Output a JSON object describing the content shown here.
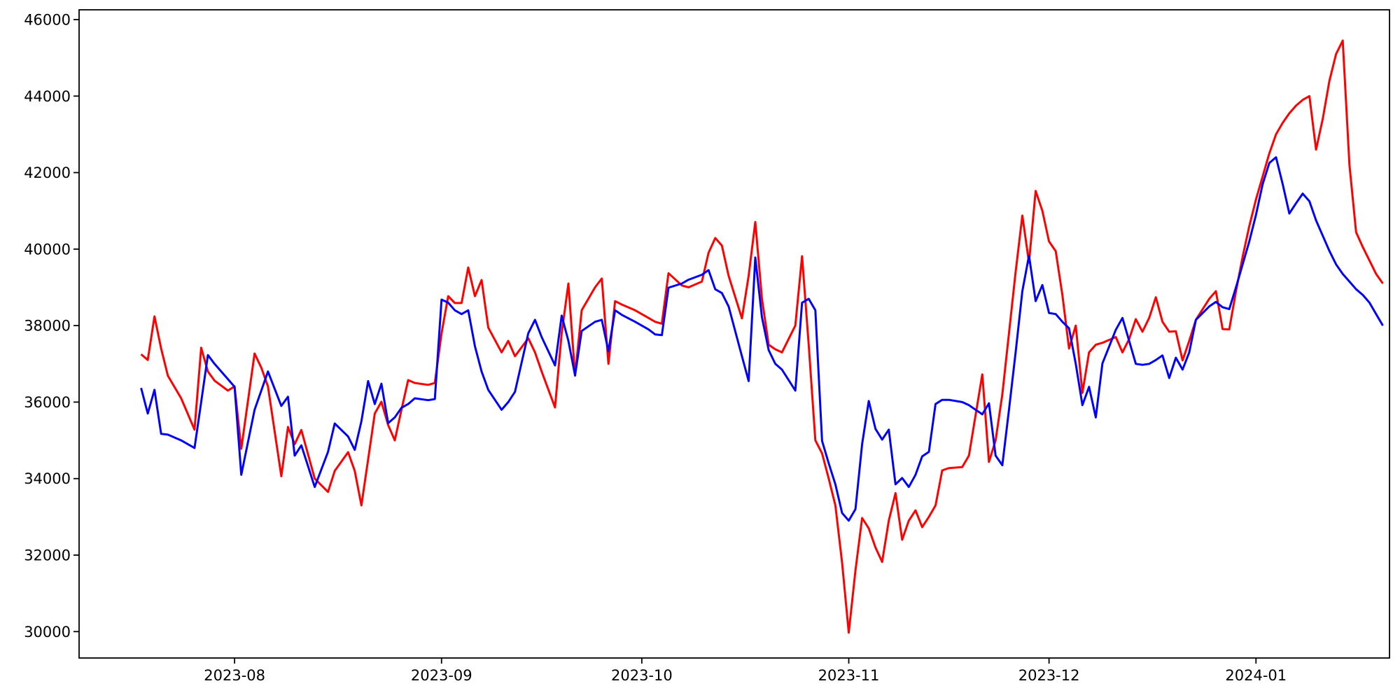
{
  "figure": {
    "title": "",
    "background_color": "#ffffff",
    "spine_color": "#000000"
  },
  "chart_data": {
    "type": "line",
    "title": "",
    "xlabel": "",
    "ylabel": "",
    "grid": false,
    "legend": null,
    "x_tick_labels": [
      "2023-08",
      "2023-09",
      "2023-10",
      "2023-11",
      "2023-12",
      "2024-01"
    ],
    "x_tick_dates": [
      "2023-08-01",
      "2023-09-01",
      "2023-10-01",
      "2023-11-01",
      "2023-12-01",
      "2024-01-01"
    ],
    "y_ticks": [
      30000,
      32000,
      34000,
      36000,
      38000,
      40000,
      42000,
      44000,
      46000
    ],
    "ylim": [
      29310,
      46256
    ],
    "xlim": [
      "2023-07-08T17:00:00",
      "2024-01-21T00:00:00"
    ],
    "dates": [
      "2023-07-18",
      "2023-07-19",
      "2023-07-20",
      "2023-07-21",
      "2023-07-22",
      "2023-07-24",
      "2023-07-26",
      "2023-07-27",
      "2023-07-28",
      "2023-07-29",
      "2023-07-31",
      "2023-08-01",
      "2023-08-02",
      "2023-08-04",
      "2023-08-05",
      "2023-08-06",
      "2023-08-08",
      "2023-08-09",
      "2023-08-10",
      "2023-08-11",
      "2023-08-13",
      "2023-08-15",
      "2023-08-16",
      "2023-08-18",
      "2023-08-19",
      "2023-08-20",
      "2023-08-21",
      "2023-08-22",
      "2023-08-23",
      "2023-08-24",
      "2023-08-25",
      "2023-08-26",
      "2023-08-27",
      "2023-08-28",
      "2023-08-30",
      "2023-08-31",
      "2023-09-01",
      "2023-09-02",
      "2023-09-03",
      "2023-09-04",
      "2023-09-05",
      "2023-09-06",
      "2023-09-07",
      "2023-09-08",
      "2023-09-10",
      "2023-09-11",
      "2023-09-12",
      "2023-09-14",
      "2023-09-15",
      "2023-09-16",
      "2023-09-18",
      "2023-09-19",
      "2023-09-20",
      "2023-09-21",
      "2023-09-22",
      "2023-09-24",
      "2023-09-25",
      "2023-09-26",
      "2023-09-27",
      "2023-09-28",
      "2023-09-30",
      "2023-10-02",
      "2023-10-03",
      "2023-10-04",
      "2023-10-05",
      "2023-10-07",
      "2023-10-08",
      "2023-10-10",
      "2023-10-11",
      "2023-10-12",
      "2023-10-13",
      "2023-10-14",
      "2023-10-16",
      "2023-10-17",
      "2023-10-18",
      "2023-10-19",
      "2023-10-20",
      "2023-10-21",
      "2023-10-22",
      "2023-10-24",
      "2023-10-25",
      "2023-10-26",
      "2023-10-27",
      "2023-10-28",
      "2023-10-29",
      "2023-10-30",
      "2023-10-31",
      "2023-11-01",
      "2023-11-02",
      "2023-11-03",
      "2023-11-04",
      "2023-11-05",
      "2023-11-06",
      "2023-11-07",
      "2023-11-08",
      "2023-11-09",
      "2023-11-10",
      "2023-11-11",
      "2023-11-12",
      "2023-11-13",
      "2023-11-14",
      "2023-11-15",
      "2023-11-16",
      "2023-11-18",
      "2023-11-19",
      "2023-11-21",
      "2023-11-22",
      "2023-11-23",
      "2023-11-24",
      "2023-11-25",
      "2023-11-26",
      "2023-11-27",
      "2023-11-28",
      "2023-11-29",
      "2023-11-30",
      "2023-12-01",
      "2023-12-02",
      "2023-12-03",
      "2023-12-04",
      "2023-12-05",
      "2023-12-06",
      "2023-12-07",
      "2023-12-08",
      "2023-12-09",
      "2023-12-11",
      "2023-12-12",
      "2023-12-13",
      "2023-12-14",
      "2023-12-15",
      "2023-12-16",
      "2023-12-17",
      "2023-12-18",
      "2023-12-19",
      "2023-12-20",
      "2023-12-21",
      "2023-12-22",
      "2023-12-23",
      "2023-12-25",
      "2023-12-26",
      "2023-12-27",
      "2023-12-28",
      "2023-12-29",
      "2023-12-30",
      "2023-12-31",
      "2024-01-01",
      "2024-01-02",
      "2024-01-03",
      "2024-01-04",
      "2024-01-05",
      "2024-01-06",
      "2024-01-07",
      "2024-01-08",
      "2024-01-09",
      "2024-01-10",
      "2024-01-11",
      "2024-01-12",
      "2024-01-13",
      "2024-01-14",
      "2024-01-15",
      "2024-01-16",
      "2024-01-17",
      "2024-01-18",
      "2024-01-19",
      "2024-01-20"
    ],
    "series": [
      {
        "name": "red-series",
        "color": "#ff0000",
        "line_width": 3,
        "values": [
          37250,
          37100,
          38240,
          37400,
          36690,
          36100,
          35280,
          37420,
          36800,
          36560,
          36300,
          36410,
          34780,
          37270,
          36900,
          36410,
          34060,
          35350,
          34900,
          35270,
          34000,
          33650,
          34200,
          34690,
          34200,
          33300,
          34500,
          35700,
          36010,
          35400,
          35000,
          35800,
          36575,
          36500,
          36450,
          36500,
          37800,
          38770,
          38590,
          38590,
          39520,
          38770,
          39190,
          37950,
          37300,
          37600,
          37200,
          37670,
          37300,
          36800,
          35860,
          37800,
          39100,
          36690,
          38400,
          39000,
          39230,
          37000,
          38640,
          38550,
          38400,
          38200,
          38100,
          38050,
          39370,
          39050,
          39000,
          39150,
          39900,
          40290,
          40090,
          39300,
          38190,
          39300,
          40710,
          38700,
          37500,
          37380,
          37300,
          38000,
          39815,
          37500,
          35000,
          34660,
          34000,
          33300,
          31800,
          29975,
          31600,
          32970,
          32700,
          32200,
          31820,
          32900,
          33620,
          32400,
          32900,
          33170,
          32730,
          33000,
          33300,
          34215,
          34275,
          34300,
          34600,
          36725,
          34435,
          35000,
          36200,
          37800,
          39400,
          40875,
          39650,
          41520,
          41000,
          40200,
          39945,
          38800,
          37400,
          38000,
          36240,
          37300,
          37500,
          37550,
          37700,
          37300,
          37650,
          38170,
          37840,
          38200,
          38740,
          38100,
          37840,
          37850,
          37090,
          37600,
          38150,
          38700,
          38900,
          37910,
          37900,
          38900,
          39800,
          40600,
          41300,
          41900,
          42500,
          43000,
          43300,
          43550,
          43750,
          43900,
          44000,
          42600,
          43400,
          44400,
          45100,
          45450,
          42200,
          40440,
          40050,
          39700,
          39350,
          39100
        ]
      },
      {
        "name": "blue-series",
        "color": "#0000ff",
        "line_width": 3,
        "values": [
          36370,
          35700,
          36320,
          35170,
          35150,
          35000,
          34800,
          36000,
          37230,
          37000,
          36600,
          36400,
          34100,
          35800,
          36300,
          36800,
          35900,
          36140,
          34600,
          34870,
          33780,
          34700,
          35440,
          35100,
          34750,
          35500,
          36550,
          35950,
          36480,
          35450,
          35600,
          35850,
          35950,
          36100,
          36050,
          36080,
          38680,
          38600,
          38400,
          38300,
          38400,
          37460,
          36800,
          36320,
          35800,
          36000,
          36270,
          37800,
          38150,
          37700,
          36960,
          38260,
          37600,
          36700,
          37860,
          38100,
          38150,
          37330,
          38400,
          38280,
          38100,
          37900,
          37770,
          37750,
          38990,
          39100,
          39200,
          39330,
          39450,
          38950,
          38850,
          38500,
          37200,
          36550,
          39780,
          38220,
          37360,
          37000,
          36850,
          36300,
          38600,
          38700,
          38400,
          34985,
          34400,
          33850,
          33100,
          32900,
          33200,
          34900,
          36030,
          35300,
          35020,
          35280,
          33850,
          34015,
          33780,
          34100,
          34580,
          34700,
          35950,
          36060,
          36060,
          36000,
          35920,
          35680,
          35970,
          34600,
          34350,
          35800,
          37300,
          38900,
          39830,
          38640,
          39060,
          38330,
          38300,
          38100,
          37930,
          37000,
          35920,
          36400,
          35600,
          37010,
          37890,
          38200,
          37600,
          37000,
          36975,
          37000,
          37100,
          37220,
          36630,
          37160,
          36850,
          37300,
          38150,
          38500,
          38620,
          38480,
          38430,
          39000,
          39600,
          40200,
          40900,
          41700,
          42250,
          42400,
          41700,
          40930,
          41200,
          41450,
          41250,
          40750,
          40350,
          39950,
          39600,
          39350,
          39150,
          38950,
          38800,
          38600,
          38300,
          38000
        ]
      }
    ]
  }
}
